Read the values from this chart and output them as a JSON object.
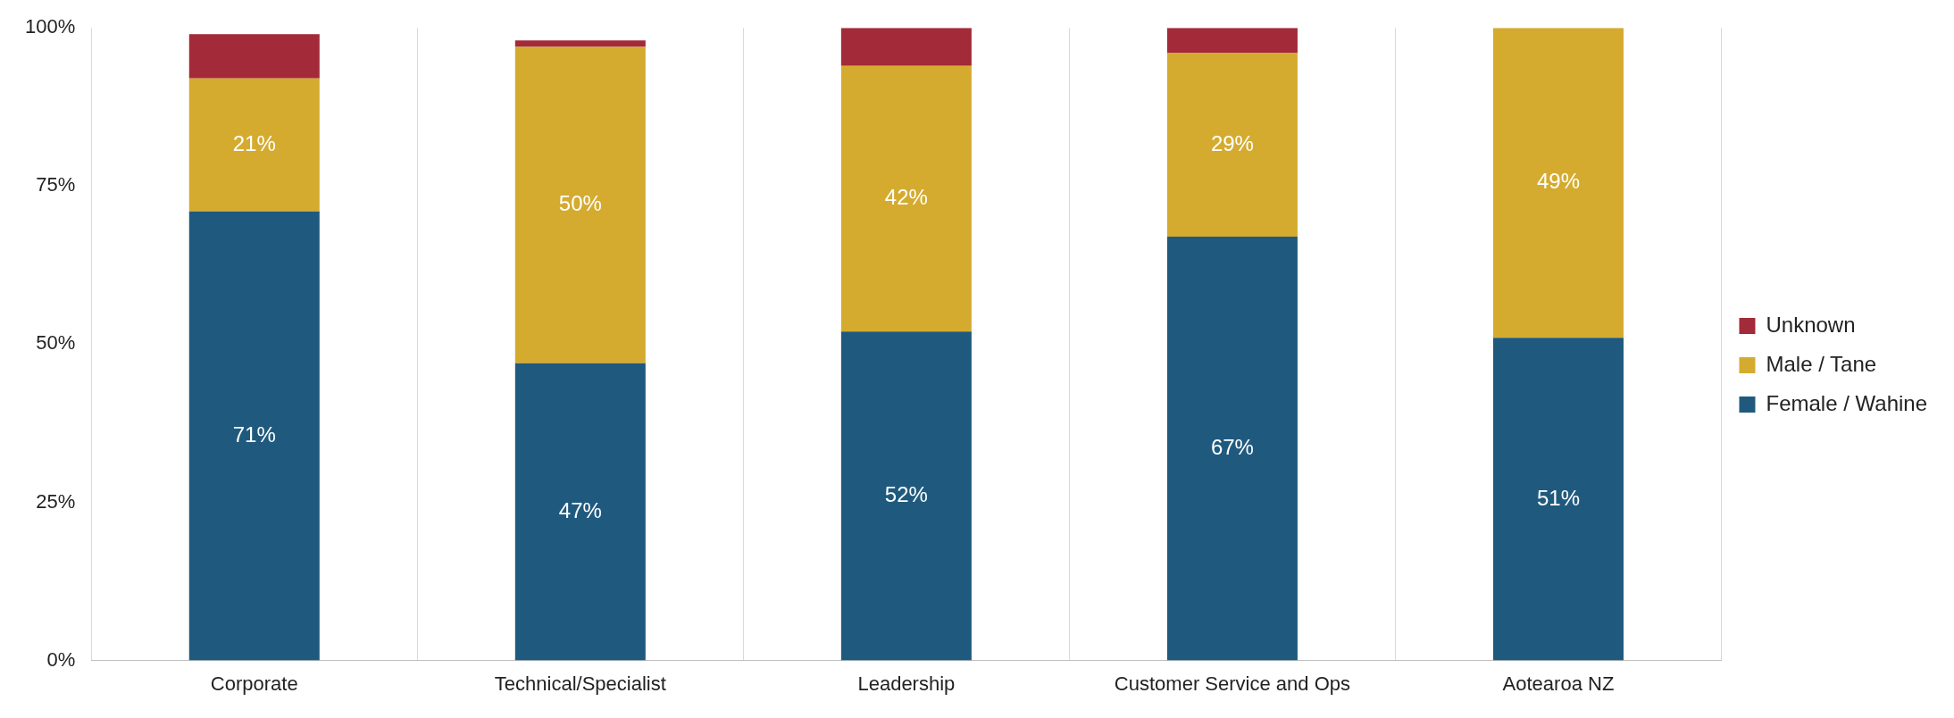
{
  "chart_data": {
    "type": "bar",
    "stacked": true,
    "categories": [
      "Corporate",
      "Technical/Specialist",
      "Leadership",
      "Customer Service and Ops",
      "Aotearoa NZ"
    ],
    "series": [
      {
        "name": "Female / Wahine",
        "color": "#1f5a7e",
        "values": [
          71,
          47,
          52,
          67,
          51
        ],
        "value_labels": [
          "71%",
          "47%",
          "52%",
          "67%",
          "51%"
        ]
      },
      {
        "name": "Male / Tane",
        "color": "#d4ab2f",
        "values": [
          21,
          50,
          42,
          29,
          49
        ],
        "value_labels": [
          "21%",
          "50%",
          "42%",
          "29%",
          "49%"
        ]
      },
      {
        "name": "Unknown",
        "color": "#a32a38",
        "values": [
          7,
          1,
          6,
          4,
          0
        ]
      }
    ],
    "ylim": [
      0,
      100
    ],
    "yticks": [
      {
        "value": 0,
        "label": "0%"
      },
      {
        "value": 25,
        "label": "25%"
      },
      {
        "value": 50,
        "label": "50%"
      },
      {
        "value": 75,
        "label": "75%"
      },
      {
        "value": 100,
        "label": "100%"
      }
    ],
    "grid": "x",
    "legend": "right"
  }
}
